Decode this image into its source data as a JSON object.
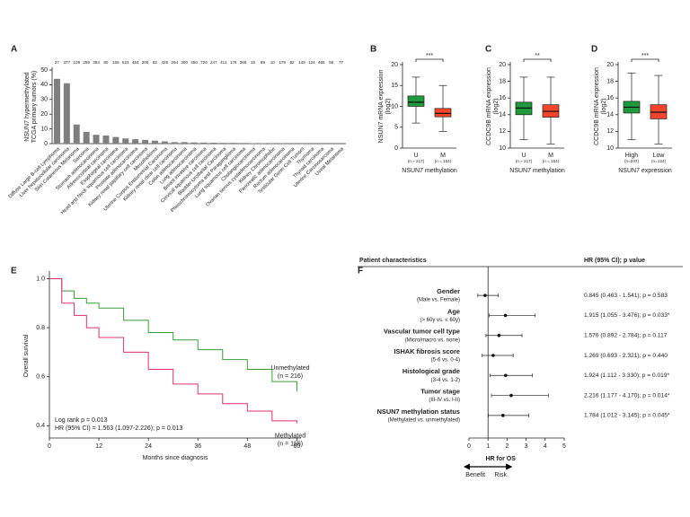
{
  "chart_data": [
    {
      "type": "bar",
      "panel": "A",
      "ylabel": [
        "NSUN7 hypermethylated",
        "TCGA primary tumors (%)"
      ],
      "categories": [
        "Diffuse Large B-cell Lymphoma",
        "Liver hepatocellular carcinoma",
        "Skin Cutaneous Melanoma",
        "Sarcoma",
        "Stomach adenocarcinoma",
        "Adrenocortical carcinoma",
        "Esophageal carcinoma",
        "Head and Neck squamous cell carcinoma",
        "Prostate adenocarcinoma",
        "Kidney renal papillary cell carcinoma",
        "Mesothelioma",
        "Uterine Corpus Endometrial Carcinoma",
        "Kidney renal clear cell carcinoma",
        "Colon adenocarcinoma",
        "Lung adenocarcinoma",
        "Breast invasive carcinoma",
        "Cervical squamous cell carcinoma",
        "Bladder Urothelial Carcinoma",
        "Pheochromocytoma and Paraganglioma",
        "Lung squamous cell carcinoma",
        "Cholangiocarcinoma",
        "Ovarian serous cystadenocarcinoma",
        "Kidney Chromophobe",
        "Pancreatic adenocarcinoma",
        "Rectum adenocarcinoma",
        "Testicular Germ Cell Tumors",
        "Thymoma",
        "Thyroid carcinoma",
        "Uterine Carcinosarcoma",
        "Uveal Melanoma"
      ],
      "values": [
        44,
        41,
        13,
        8,
        6,
        5.5,
        4.5,
        3.5,
        3,
        2.5,
        2,
        1.5,
        1,
        1,
        0.8,
        0.7,
        0.6,
        0.5,
        0.5,
        0.4,
        0.3,
        0.3,
        0.2,
        0.2,
        0.1,
        0.1,
        0,
        0,
        0,
        0
      ],
      "sample_sizes": [
        27,
        377,
        109,
        259,
        394,
        80,
        155,
        523,
        484,
        205,
        82,
        428,
        294,
        300,
        450,
        726,
        247,
        411,
        176,
        366,
        19,
        69,
        10,
        179,
        92,
        149,
        124,
        465,
        56,
        77
      ],
      "color": "#7f7f7f",
      "ylim": [
        0,
        50
      ],
      "yticks": [
        0,
        10,
        20,
        30,
        40,
        50
      ]
    },
    {
      "type": "box",
      "panel": "B",
      "ylabel": [
        "NSUN7 mRNA expression",
        "(log2)"
      ],
      "xlabel": "NSUN7 methylation",
      "significance": "***",
      "ylim": [
        0,
        20
      ],
      "yticks": [
        0,
        5,
        10,
        15,
        20
      ],
      "boxes": [
        {
          "category": "U",
          "n_label": "(n = 217)",
          "color": "#1e9a3c",
          "min": 6,
          "q1": 10,
          "median": 11,
          "q3": 12.5,
          "max": 17
        },
        {
          "category": "M",
          "n_label": "(n = 154)",
          "color": "#f0442c",
          "min": 4,
          "q1": 7.5,
          "median": 8.3,
          "q3": 9.5,
          "max": 15
        }
      ]
    },
    {
      "type": "box",
      "panel": "C",
      "ylabel": [
        "CCDC9B mRNA expression",
        "(log2)"
      ],
      "xlabel": "NSUN7 methylation",
      "significance": "**",
      "ylim": [
        10,
        20
      ],
      "yticks": [
        10,
        12,
        14,
        16,
        18,
        20
      ],
      "boxes": [
        {
          "category": "U",
          "n_label": "(n = 217)",
          "color": "#1e9a3c",
          "min": 11,
          "q1": 14,
          "median": 14.8,
          "q3": 15.5,
          "max": 18.5
        },
        {
          "category": "M",
          "n_label": "(n = 154)",
          "color": "#f0442c",
          "min": 10.5,
          "q1": 13.7,
          "median": 14.4,
          "q3": 15.2,
          "max": 18.5
        }
      ]
    },
    {
      "type": "box",
      "panel": "D",
      "ylabel": [
        "CCDC9B mRNA expression",
        "(log2)"
      ],
      "xlabel": "NSUN7 expression",
      "significance": "***",
      "ylim": [
        10,
        20
      ],
      "yticks": [
        10,
        12,
        14,
        16,
        18,
        20
      ],
      "boxes": [
        {
          "category": "High",
          "n_label": "(n=247)",
          "color": "#1e9a3c",
          "min": 11,
          "q1": 14.2,
          "median": 14.9,
          "q3": 15.6,
          "max": 19
        },
        {
          "category": "Low",
          "n_label": "(n=124)",
          "color": "#f0442c",
          "min": 10.5,
          "q1": 13.5,
          "median": 14.3,
          "q3": 15.2,
          "max": 18.7
        }
      ]
    },
    {
      "type": "line",
      "panel": "E",
      "ylabel": "Overall survival",
      "xlabel": "Months since diagnosis",
      "stats": [
        "Log rank p = 0.013",
        "HR (95% CI) = 1.563 (1.097-2.226); p = 0.013"
      ],
      "x": [
        0,
        3,
        6,
        9,
        12,
        18,
        24,
        30,
        36,
        42,
        48,
        54,
        60
      ],
      "series": [
        {
          "name": "Unmethylated",
          "n_label": "(n = 216)",
          "color": "#3a9a3a",
          "values": [
            1,
            0.95,
            0.92,
            0.9,
            0.88,
            0.83,
            0.78,
            0.75,
            0.71,
            0.67,
            0.63,
            0.58,
            0.54
          ]
        },
        {
          "name": "Methylated",
          "n_label": "(n = 155)",
          "color": "#e0306a",
          "values": [
            1,
            0.9,
            0.85,
            0.8,
            0.76,
            0.7,
            0.63,
            0.57,
            0.53,
            0.49,
            0.46,
            0.42,
            0.41
          ]
        }
      ],
      "xlim": [
        0,
        61
      ],
      "xticks": [
        0,
        12,
        24,
        36,
        48,
        60
      ],
      "ylim": [
        0.35,
        1.02
      ],
      "yticks": [
        0.4,
        0.6,
        0.8,
        {
          "value": 1,
          "label": "1.0"
        }
      ]
    },
    {
      "type": "forest",
      "panel": "F",
      "header": [
        "Patient characteristics",
        "HR (95% CI); p value"
      ],
      "xlabel": "HR for OS",
      "directions": [
        "Benefit",
        "Risk"
      ],
      "reference_line": 1,
      "xlim": [
        0,
        5
      ],
      "xticks": [
        0,
        1,
        2,
        3,
        4,
        5
      ],
      "rows": [
        {
          "label": "Gender",
          "sublabel": "(Male vs. Female)",
          "hr": 0.845,
          "ci": [
            0.463,
            1.541
          ],
          "text": "0.845 (0.463 - 1.541); p = 0.583"
        },
        {
          "label": "Age",
          "sublabel": "(> 60y vs. ≤ 60y)",
          "hr": 1.915,
          "ci": [
            1.055,
            3.476
          ],
          "text": "1.915 (1.055 - 3.476); p = 0.033*"
        },
        {
          "label": "Vascular tumor cell type",
          "sublabel": "(Micro/macro vs. none)",
          "hr": 1.576,
          "ci": [
            0.892,
            2.784
          ],
          "text": "1.576 (0.892 - 2.784); p = 0.117"
        },
        {
          "label": "ISHAK fibrosis score",
          "sublabel": "(5-6 vs. 0-4)",
          "hr": 1.269,
          "ci": [
            0.693,
            2.321
          ],
          "text": "1.269 (0.693 - 2.321); p = 0.440"
        },
        {
          "label": "Histological grade",
          "sublabel": "(3-4 vs. 1-2)",
          "hr": 1.924,
          "ci": [
            1.112,
            3.33
          ],
          "text": "1.924 (1.112 - 3.330); p = 0.019*"
        },
        {
          "label": "Tumor stage",
          "sublabel": "(III-IV vs. I-II)",
          "hr": 2.216,
          "ci": [
            1.177,
            4.17
          ],
          "text": "2.216 (1.177 - 4.170); p = 0.014*"
        },
        {
          "label": "NSUN7 methylation status",
          "sublabel": "(Methylated vs. unmethylated)",
          "hr": 1.784,
          "ci": [
            1.012,
            3.145
          ],
          "text": "1.784 (1.012 - 3.145); p = 0.045*"
        }
      ]
    }
  ]
}
